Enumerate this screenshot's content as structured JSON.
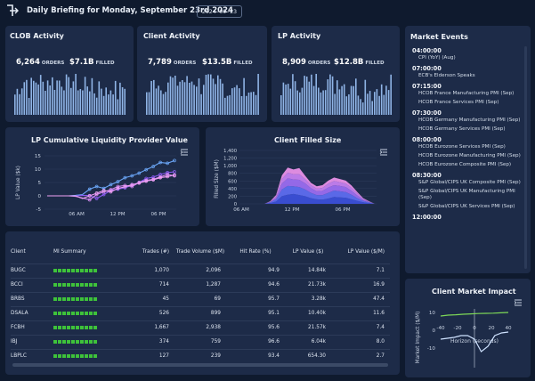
{
  "header": {
    "title": "Daily Briefing for Monday, September 23rd 2024",
    "date_badge": "2024-09-23"
  },
  "colors": {
    "background": "#0f1a2e",
    "panel": "#1d2b48",
    "bars": "#8fb4e6",
    "green": "#3ec23a",
    "pink": "#d58bf0",
    "purple": "#8a5cf0",
    "blue": "#6aa5f5"
  },
  "clob": {
    "title": "CLOB Activity",
    "orders_value": "6,264",
    "orders_label": "ORDERS",
    "filled_value": "$7.1B",
    "filled_label": "FILLED"
  },
  "client_activity": {
    "title": "Client Activity",
    "orders_value": "7,789",
    "orders_label": "ORDERS",
    "filled_value": "$13.5B",
    "filled_label": "FILLED"
  },
  "lp_activity": {
    "title": "LP Activity",
    "orders_value": "8,909",
    "orders_label": "ORDERS",
    "filled_value": "$12.8B",
    "filled_label": "FILLED"
  },
  "market_events": {
    "title": "Market Events",
    "groups": [
      {
        "time": "04:00:00",
        "items": [
          "CPI (YoY) (Aug)"
        ]
      },
      {
        "time": "07:00:00",
        "items": [
          "ECB's Elderson Speaks"
        ]
      },
      {
        "time": "07:15:00",
        "items": [
          "HCOB France Manufacturing PMI (Sep)",
          "HCOB France Services PMI (Sep)"
        ]
      },
      {
        "time": "07:30:00",
        "items": [
          "HCOB Germany Manufacturing PMI (Sep)",
          "HCOB Germany Services PMI (Sep)"
        ]
      },
      {
        "time": "08:00:00",
        "items": [
          "HCOB Eurozone Services PMI (Sep)",
          "HCOB Eurozone Manufacturing PMI (Sep)",
          "HCOB Eurozone Composite PMI (Sep)"
        ]
      },
      {
        "time": "08:30:00",
        "items": [
          "S&P Global/CIPS UK Composite PMI (Sep)",
          "S&P Global/CIPS UK Manufacturing PMI (Sep)",
          "S&P Global/CIPS UK Services PMI (Sep)"
        ]
      },
      {
        "time": "12:00:00",
        "items": []
      }
    ]
  },
  "lp_cumulative": {
    "title": "LP Cumulative Liquidity Provider Value",
    "ylabel": "LP Value ($k)",
    "yticks": [
      "15",
      "10",
      "5",
      "0",
      "-5"
    ],
    "xticks": [
      "06 AM",
      "12 PM",
      "06 PM"
    ]
  },
  "client_filled": {
    "title": "Client Filled Size",
    "ylabel": "Filled Size ($M)",
    "yticks": [
      "1,400",
      "1,200",
      "1,000",
      "800",
      "600",
      "400",
      "200",
      "0"
    ],
    "xticks": [
      "06 AM",
      "12 PM",
      "06 PM"
    ]
  },
  "table": {
    "headers": {
      "client": "Client",
      "summary": "MI Summary",
      "trades": "Trades (#)",
      "volume": "Trade Volume ($M)",
      "hit_rate": "Hit Rate (%)",
      "lp_value": "LP Value ($)",
      "lp_value_m": "LP Value ($/M)"
    },
    "rows": [
      {
        "client": "BUGC",
        "trades": "1,070",
        "volume": "2,096",
        "hit_rate": "94.9",
        "lp_value": "14.84k",
        "lp_value_m": "7.1"
      },
      {
        "client": "BCCI",
        "trades": "714",
        "volume": "1,287",
        "hit_rate": "94.6",
        "lp_value": "21.73k",
        "lp_value_m": "16.9"
      },
      {
        "client": "BRBS",
        "trades": "45",
        "volume": "69",
        "hit_rate": "95.7",
        "lp_value": "3.28k",
        "lp_value_m": "47.4"
      },
      {
        "client": "DSALA",
        "trades": "526",
        "volume": "899",
        "hit_rate": "95.1",
        "lp_value": "10.40k",
        "lp_value_m": "11.6"
      },
      {
        "client": "FCBH",
        "trades": "1,667",
        "volume": "2,938",
        "hit_rate": "95.6",
        "lp_value": "21.57k",
        "lp_value_m": "7.4"
      },
      {
        "client": "IBJ",
        "trades": "374",
        "volume": "759",
        "hit_rate": "96.6",
        "lp_value": "6.04k",
        "lp_value_m": "8.0"
      },
      {
        "client": "LBPLC",
        "trades": "127",
        "volume": "239",
        "hit_rate": "93.4",
        "lp_value": "654.30",
        "lp_value_m": "2.7"
      }
    ]
  },
  "market_impact": {
    "title": "Client Market Impact",
    "ylabel": "Market Impact ($/M)",
    "yticks": [
      "10",
      "0",
      "-10"
    ],
    "xticks": [
      "-40",
      "-20",
      "0",
      "20",
      "40"
    ],
    "xlabel": "Horizon (seconds)"
  }
}
